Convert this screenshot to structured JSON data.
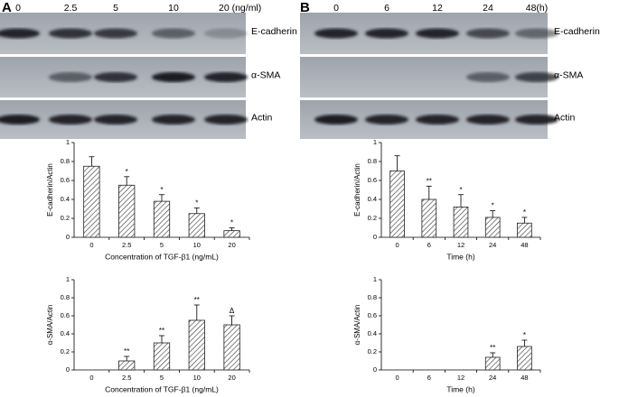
{
  "panels": [
    {
      "label": "A",
      "lanes": [
        "0",
        "2.5",
        "5",
        "10",
        "20 (ng/ml)"
      ],
      "bands": [
        "E-cadherin",
        "α-SMA",
        "Actin"
      ]
    },
    {
      "label": "B",
      "lanes": [
        "0",
        "6",
        "12",
        "24",
        "48(h)"
      ],
      "bands": [
        "E-cadherin",
        "α-SMA",
        "Actin"
      ]
    }
  ],
  "chart_data": [
    {
      "type": "bar",
      "ylabel": "E-cadherin/Actin",
      "xlabel": "Concentration of TGF-β1 (ng/mL)",
      "categories": [
        "0",
        "2.5",
        "5",
        "10",
        "20"
      ],
      "values": [
        0.75,
        0.55,
        0.38,
        0.25,
        0.07
      ],
      "errors": [
        0.1,
        0.09,
        0.07,
        0.06,
        0.03
      ],
      "significance": [
        null,
        "*",
        "*",
        "*",
        "*"
      ],
      "ylim": [
        0,
        1
      ],
      "yticks": [
        0,
        0.2,
        0.4,
        0.6,
        0.8,
        1
      ]
    },
    {
      "type": "bar",
      "ylabel": "α-SMA/Actin",
      "xlabel": "Concentration of TGF-β1 (ng/mL)",
      "categories": [
        "0",
        "2.5",
        "5",
        "10",
        "20"
      ],
      "values": [
        0,
        0.1,
        0.3,
        0.55,
        0.5
      ],
      "errors": [
        0,
        0.05,
        0.08,
        0.17,
        0.1
      ],
      "significance": [
        null,
        "**",
        "**",
        "**",
        "Δ"
      ],
      "ylim": [
        0,
        1
      ],
      "yticks": [
        0,
        0.2,
        0.4,
        0.6,
        0.8,
        1
      ]
    },
    {
      "type": "bar",
      "ylabel": "E-cadherin/Actin",
      "xlabel": "Time (h)",
      "categories": [
        "0",
        "6",
        "12",
        "24",
        "48"
      ],
      "values": [
        0.7,
        0.4,
        0.32,
        0.21,
        0.15
      ],
      "errors": [
        0.16,
        0.14,
        0.13,
        0.07,
        0.06
      ],
      "significance": [
        null,
        "**",
        "*",
        "*",
        "*"
      ],
      "ylim": [
        0,
        1
      ],
      "yticks": [
        0,
        0.2,
        0.4,
        0.6,
        0.8,
        1
      ]
    },
    {
      "type": "bar",
      "ylabel": "α-SMA/Actin",
      "xlabel": "Time (h)",
      "categories": [
        "0",
        "6",
        "12",
        "24",
        "48"
      ],
      "values": [
        0,
        0,
        0,
        0.14,
        0.26
      ],
      "errors": [
        0,
        0,
        0,
        0.05,
        0.07
      ],
      "significance": [
        null,
        null,
        null,
        "**",
        "*"
      ],
      "ylim": [
        0,
        1
      ],
      "yticks": [
        0,
        0.2,
        0.4,
        0.6,
        0.8,
        1
      ]
    }
  ]
}
